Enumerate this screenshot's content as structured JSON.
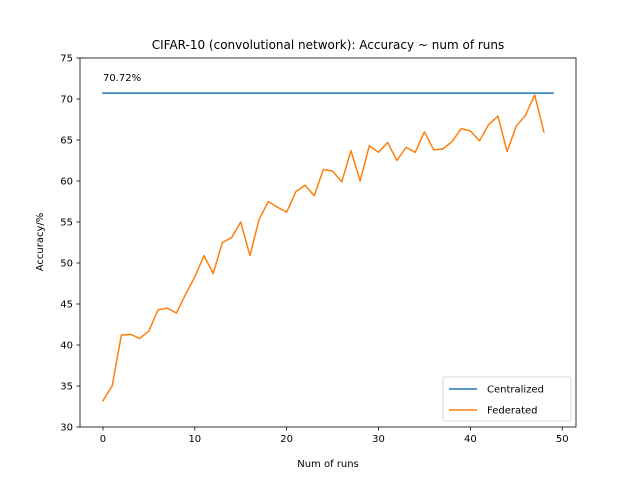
{
  "chart_data": {
    "type": "line",
    "title": "CIFAR-10 (convolutional network): Accuracy ~ num of runs",
    "xlabel": "Num of runs",
    "ylabel": "Accuracy/%",
    "xlim": [
      -2.5,
      51.5
    ],
    "ylim": [
      30,
      75
    ],
    "xticks": [
      0,
      10,
      20,
      30,
      40,
      50
    ],
    "yticks": [
      30,
      35,
      40,
      45,
      50,
      55,
      60,
      65,
      70,
      75
    ],
    "grid": false,
    "legend_position": "bottom-right",
    "annotation": {
      "text": "70.72%",
      "x": 0,
      "y": 72.2
    },
    "series": [
      {
        "name": "Centralized",
        "color": "#1f77b4",
        "x": [
          0,
          49
        ],
        "y": [
          70.72,
          70.72
        ]
      },
      {
        "name": "Federated",
        "color": "#ff7f0e",
        "x": [
          0,
          1,
          2,
          3,
          4,
          5,
          6,
          7,
          8,
          9,
          10,
          11,
          12,
          13,
          14,
          15,
          16,
          17,
          18,
          19,
          20,
          21,
          22,
          23,
          24,
          25,
          26,
          27,
          28,
          29,
          30,
          31,
          32,
          33,
          34,
          35,
          36,
          37,
          38,
          39,
          40,
          41,
          42,
          43,
          44,
          45,
          46,
          47,
          48
        ],
        "y": [
          33.2,
          35.0,
          41.2,
          41.3,
          40.8,
          41.7,
          44.3,
          44.5,
          43.9,
          46.2,
          48.3,
          50.9,
          48.7,
          52.5,
          53.1,
          55.0,
          50.9,
          55.3,
          57.5,
          56.8,
          56.2,
          58.7,
          59.5,
          58.2,
          61.4,
          61.2,
          59.9,
          63.7,
          60.0,
          64.3,
          63.5,
          64.7,
          62.5,
          64.1,
          63.5,
          66.0,
          63.8,
          63.9,
          64.8,
          66.4,
          66.1,
          64.9,
          66.9,
          67.9,
          63.6,
          66.7,
          68.0,
          70.5,
          66.0
        ]
      }
    ]
  }
}
